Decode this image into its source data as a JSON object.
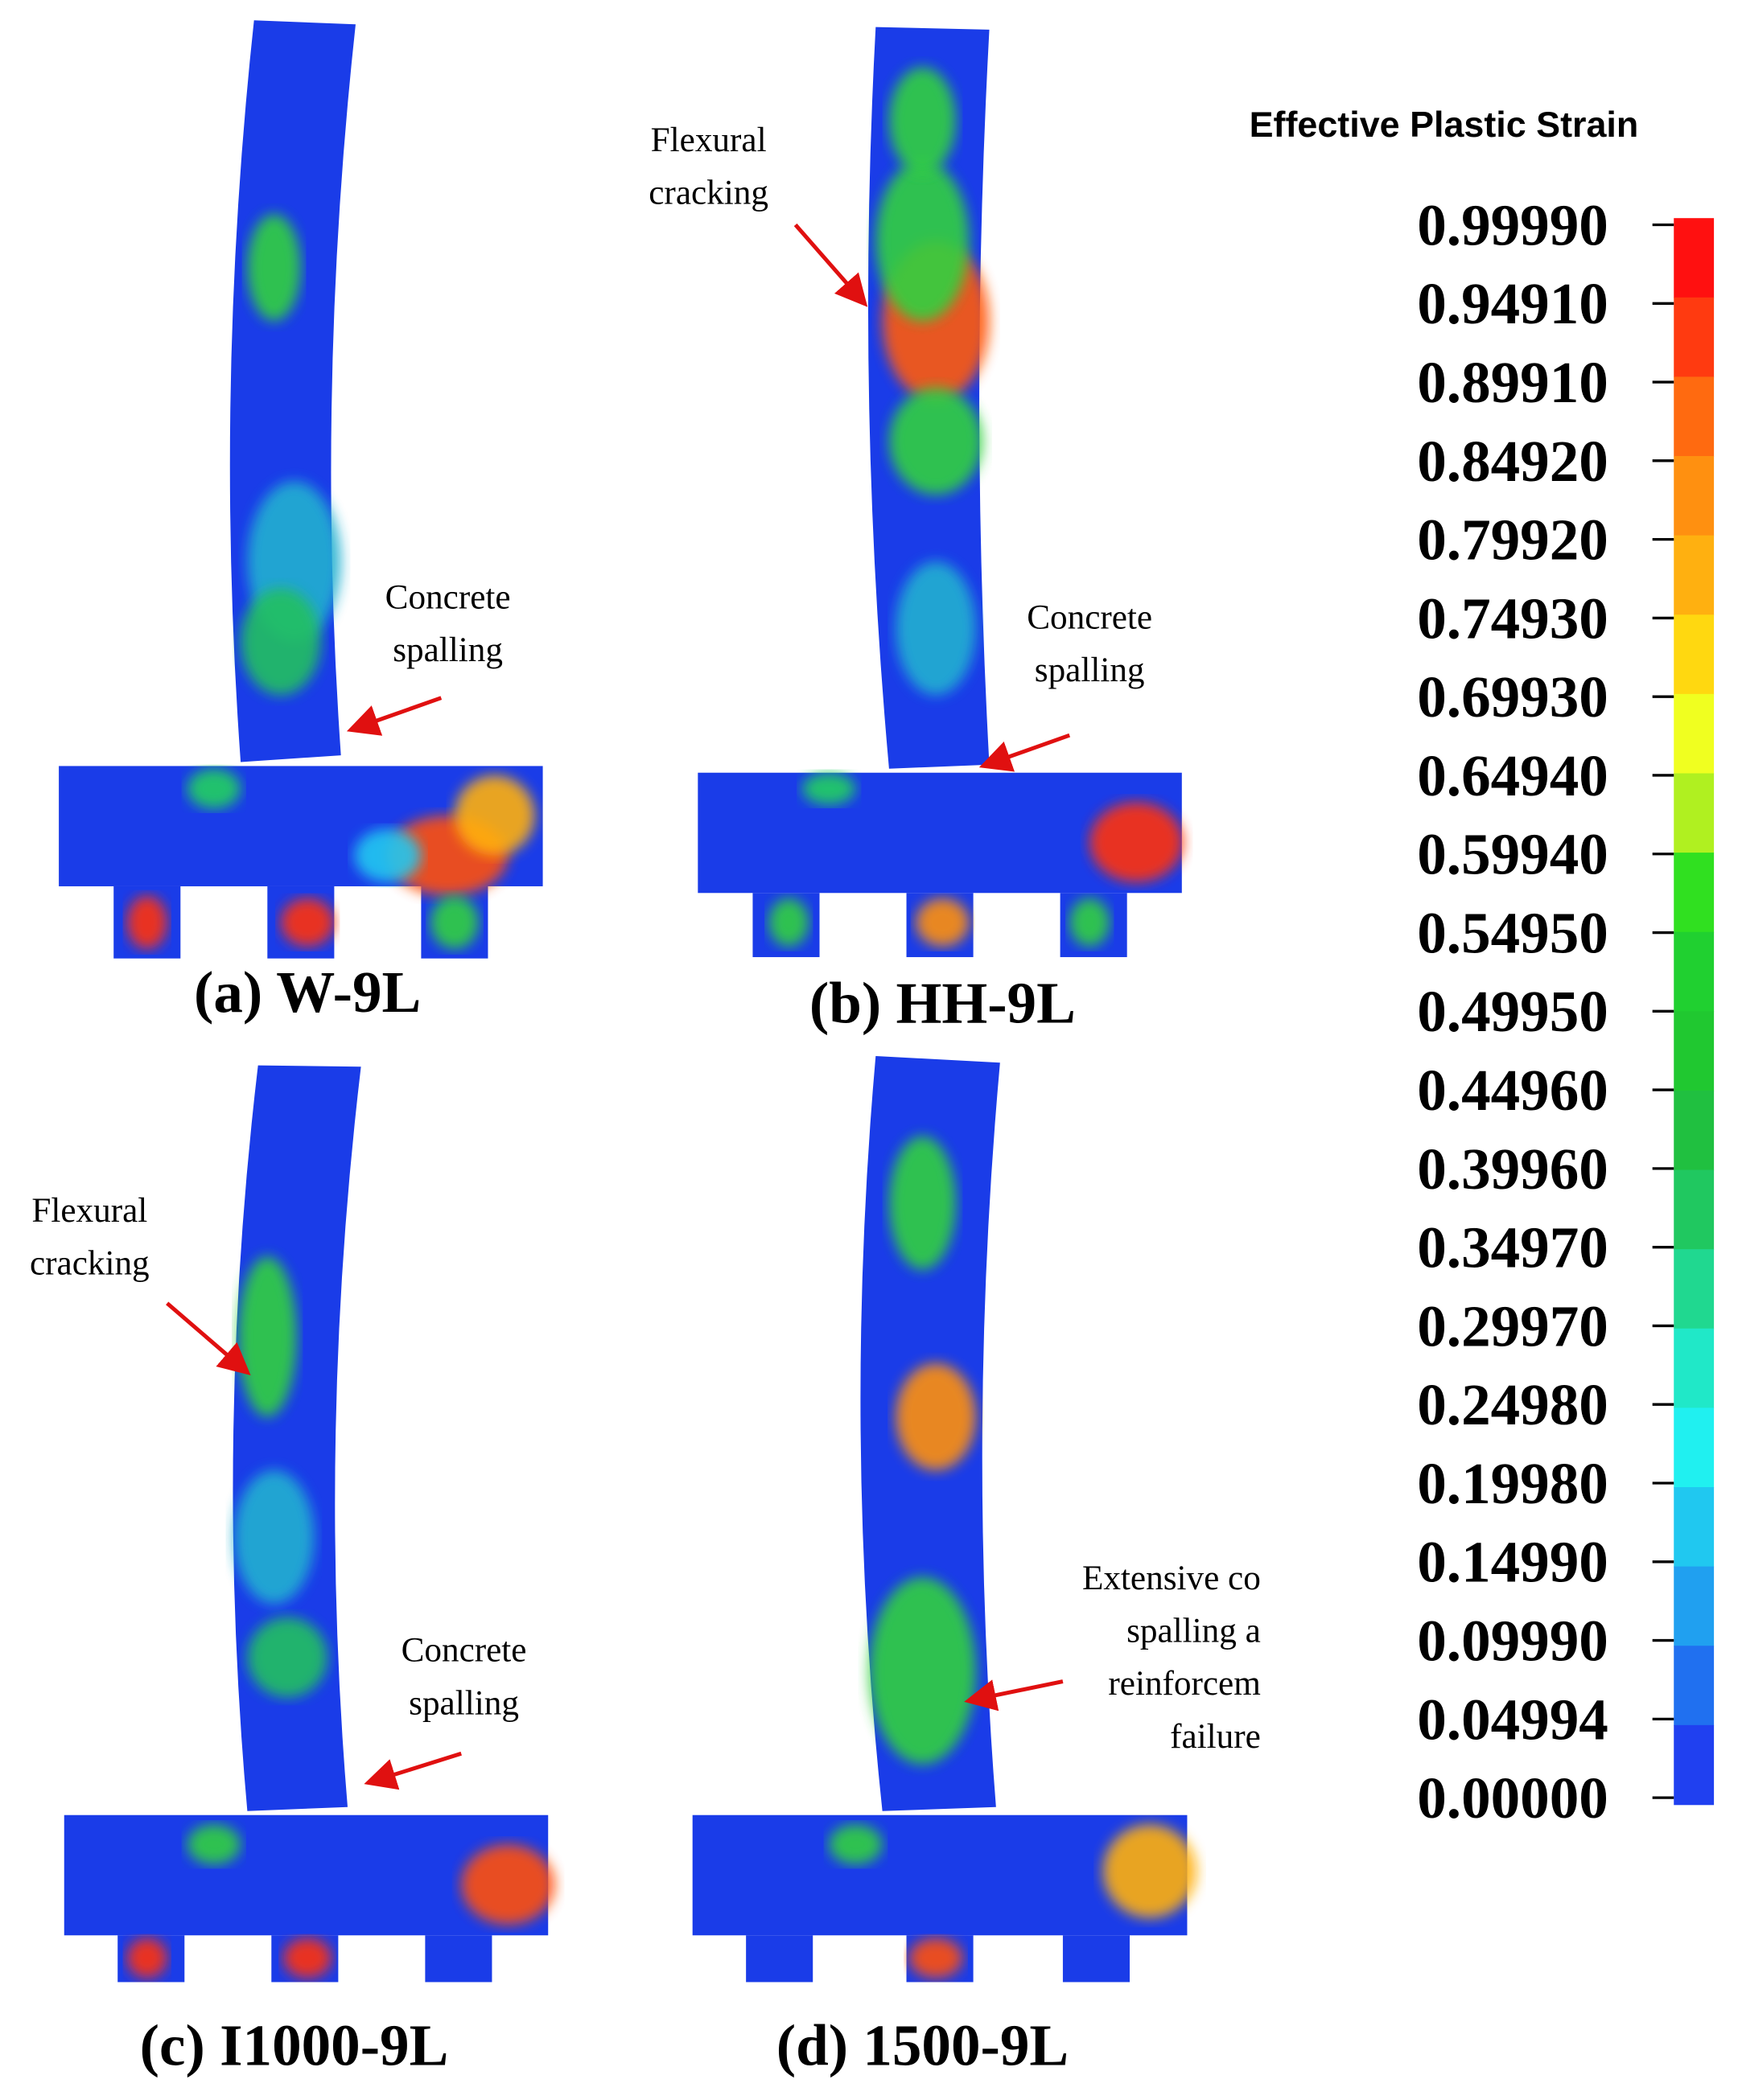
{
  "legend": {
    "title": "Effective Plastic Strain",
    "labels": [
      "0.99990",
      "0.94910",
      "0.89910",
      "0.84920",
      "0.79920",
      "0.74930",
      "0.69930",
      "0.64940",
      "0.59940",
      "0.54950",
      "0.49950",
      "0.44960",
      "0.39960",
      "0.34970",
      "0.29970",
      "0.24980",
      "0.19980",
      "0.14990",
      "0.09990",
      "0.04994",
      "0.00000"
    ]
  },
  "panels": [
    {
      "caption": "(a) W-9L",
      "annotations": [
        {
          "lines": [
            "Concrete",
            "spalling"
          ]
        }
      ]
    },
    {
      "caption": "(b) HH-9L",
      "annotations": [
        {
          "lines": [
            "Flexural",
            "cracking"
          ]
        },
        {
          "lines": [
            "Concrete",
            "spalling"
          ]
        }
      ]
    },
    {
      "caption": "(c) I1000-9L",
      "annotations": [
        {
          "lines": [
            "Flexural",
            "cracking"
          ]
        },
        {
          "lines": [
            "Concrete",
            "spalling"
          ]
        }
      ]
    },
    {
      "caption": "(d) 1500-9L",
      "annotations": [
        {
          "lines": [
            "Extensive co",
            "spalling a",
            "reinforcem",
            "failure"
          ]
        }
      ]
    }
  ]
}
